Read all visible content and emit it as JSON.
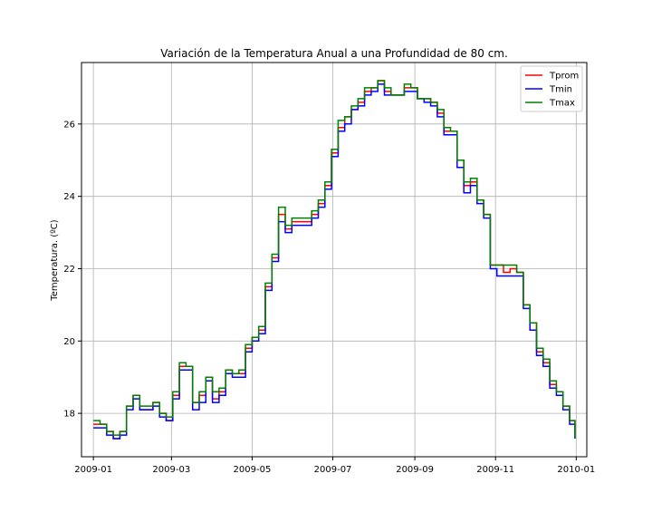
{
  "chart_data": {
    "type": "line",
    "title": "Variación de la Temperatura Anual a una Profundidad de 80 cm.",
    "xlabel": "",
    "ylabel": "Temperatura. (ºC)",
    "x_type": "date",
    "xlim": [
      "2008-12-23",
      "2010-01-09"
    ],
    "ylim": [
      16.8,
      27.7
    ],
    "xticks": [
      "2009-01-01",
      "2009-03-01",
      "2009-05-01",
      "2009-07-01",
      "2009-09-01",
      "2009-11-01",
      "2010-01-01"
    ],
    "xtick_labels": [
      "2009-01",
      "2009-03",
      "2009-05",
      "2009-07",
      "2009-09",
      "2009-11",
      "2010-01"
    ],
    "yticks": [
      18,
      20,
      22,
      24,
      26
    ],
    "ytick_labels": [
      "18",
      "20",
      "22",
      "24",
      "26"
    ],
    "grid": true,
    "legend_position": "top-right",
    "x": [
      "2009-01-01",
      "2009-01-06",
      "2009-01-11",
      "2009-01-16",
      "2009-01-21",
      "2009-01-26",
      "2009-01-31",
      "2009-02-05",
      "2009-02-10",
      "2009-02-15",
      "2009-02-20",
      "2009-02-25",
      "2009-03-02",
      "2009-03-07",
      "2009-03-12",
      "2009-03-17",
      "2009-03-22",
      "2009-03-27",
      "2009-04-01",
      "2009-04-06",
      "2009-04-11",
      "2009-04-16",
      "2009-04-21",
      "2009-04-26",
      "2009-05-01",
      "2009-05-06",
      "2009-05-11",
      "2009-05-16",
      "2009-05-21",
      "2009-05-26",
      "2009-05-31",
      "2009-06-05",
      "2009-06-10",
      "2009-06-15",
      "2009-06-20",
      "2009-06-25",
      "2009-06-30",
      "2009-07-05",
      "2009-07-10",
      "2009-07-15",
      "2009-07-20",
      "2009-07-25",
      "2009-07-30",
      "2009-08-04",
      "2009-08-09",
      "2009-08-14",
      "2009-08-19",
      "2009-08-24",
      "2009-08-29",
      "2009-09-03",
      "2009-09-08",
      "2009-09-13",
      "2009-09-18",
      "2009-09-23",
      "2009-09-28",
      "2009-10-03",
      "2009-10-08",
      "2009-10-13",
      "2009-10-18",
      "2009-10-23",
      "2009-10-28",
      "2009-11-02",
      "2009-11-07",
      "2009-11-12",
      "2009-11-17",
      "2009-11-22",
      "2009-11-27",
      "2009-12-02",
      "2009-12-07",
      "2009-12-12",
      "2009-12-17",
      "2009-12-22",
      "2009-12-27",
      "2009-12-31"
    ],
    "series": [
      {
        "name": "Tprom",
        "color": "#ff0000",
        "values": [
          17.7,
          17.7,
          17.5,
          17.3,
          17.5,
          18.2,
          18.5,
          18.1,
          18.1,
          18.3,
          18.0,
          17.8,
          18.5,
          19.3,
          19.3,
          18.3,
          18.5,
          19.0,
          18.4,
          18.6,
          19.2,
          19.1,
          19.1,
          19.8,
          20.1,
          20.3,
          21.5,
          22.3,
          23.5,
          23.1,
          23.3,
          23.3,
          23.3,
          23.5,
          23.8,
          24.3,
          25.2,
          25.9,
          26.2,
          26.4,
          26.6,
          26.9,
          27.0,
          27.2,
          26.9,
          26.8,
          26.8,
          27.0,
          27.0,
          26.7,
          26.7,
          26.6,
          26.3,
          25.8,
          25.8,
          25.0,
          24.3,
          24.4,
          23.9,
          23.5,
          22.1,
          22.1,
          21.9,
          22.0,
          21.9,
          21.0,
          20.5,
          19.7,
          19.4,
          18.8,
          18.6,
          18.2,
          17.8,
          17.3
        ]
      },
      {
        "name": "Tmin",
        "color": "#0000ff",
        "values": [
          17.6,
          17.6,
          17.4,
          17.3,
          17.4,
          18.1,
          18.4,
          18.1,
          18.1,
          18.2,
          17.9,
          17.8,
          18.4,
          19.2,
          19.2,
          18.1,
          18.3,
          18.9,
          18.3,
          18.5,
          19.1,
          19.0,
          19.0,
          19.7,
          20.0,
          20.2,
          21.4,
          22.2,
          23.3,
          23.0,
          23.2,
          23.2,
          23.2,
          23.4,
          23.7,
          24.2,
          25.1,
          25.8,
          26.0,
          26.4,
          26.5,
          26.8,
          26.9,
          27.1,
          26.8,
          26.8,
          26.8,
          26.9,
          26.9,
          26.7,
          26.6,
          26.5,
          26.2,
          25.7,
          25.7,
          24.8,
          24.1,
          24.3,
          23.8,
          23.4,
          22.0,
          21.8,
          21.8,
          21.8,
          21.8,
          20.9,
          20.3,
          19.6,
          19.3,
          18.7,
          18.5,
          18.1,
          17.7,
          17.3
        ]
      },
      {
        "name": "Tmax",
        "color": "#008000",
        "values": [
          17.8,
          17.7,
          17.5,
          17.4,
          17.5,
          18.2,
          18.5,
          18.2,
          18.2,
          18.3,
          18.0,
          17.9,
          18.6,
          19.4,
          19.3,
          18.3,
          18.6,
          19.0,
          18.6,
          18.7,
          19.2,
          19.1,
          19.2,
          19.9,
          20.1,
          20.4,
          21.6,
          22.4,
          23.7,
          23.2,
          23.4,
          23.4,
          23.4,
          23.6,
          23.9,
          24.4,
          25.3,
          26.1,
          26.2,
          26.5,
          26.7,
          27.0,
          27.0,
          27.2,
          27.0,
          26.8,
          26.8,
          27.1,
          27.0,
          26.7,
          26.7,
          26.6,
          26.4,
          25.9,
          25.8,
          25.0,
          24.4,
          24.5,
          23.9,
          23.5,
          22.1,
          22.1,
          22.1,
          22.1,
          21.9,
          21.0,
          20.5,
          19.8,
          19.5,
          18.9,
          18.6,
          18.2,
          17.8,
          17.3
        ]
      }
    ]
  }
}
